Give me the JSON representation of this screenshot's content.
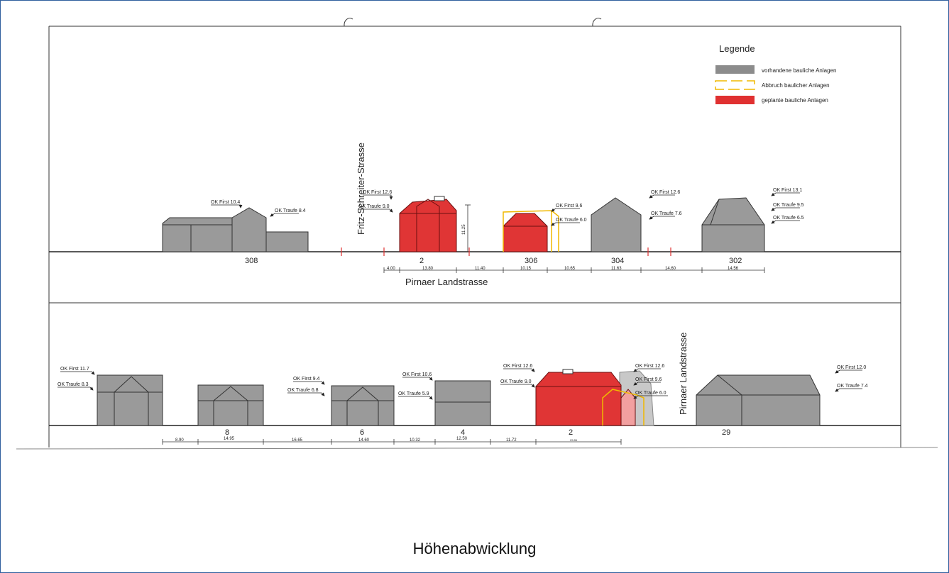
{
  "caption": "Höhenabwicklung",
  "legend": {
    "title": "Legende",
    "items": [
      {
        "label": "vorhandene bauliche Anlagen",
        "color": "#8c8c8c"
      },
      {
        "label": "Abbruch baulicher Anlagen",
        "color": "#f0b800"
      },
      {
        "label": "geplante bauliche Anlagen",
        "color": "#e03030"
      }
    ]
  },
  "colors": {
    "existing": "#9a9a9a",
    "demolition": "#f0b800",
    "planned": "#e03535",
    "line": "#222222"
  },
  "top_section": {
    "street_name": "Pirnaer Landstrasse",
    "cross_street": "Fritz-Schreiter-Strasse",
    "house_numbers": [
      "308",
      "2",
      "306",
      "304",
      "302"
    ],
    "height_dimension": "11.25",
    "dimensions": [
      "4.00",
      "13.80",
      "11.40",
      "10.15",
      "10.65",
      "11.63",
      "14.60",
      "14.56"
    ],
    "height_labels": [
      "OK First 10.4",
      "OK Traufe 8.4",
      "OK First 12.6",
      "OK Traufe 9.0",
      "OK First 9.6",
      "OK Traufe 6.0",
      "OK First 12.6",
      "OK Traufe 7.6",
      "OK First 13.1",
      "OK Traufe 9.5",
      "OK Traufe 6.5"
    ]
  },
  "bottom_section": {
    "cross_street": "Pirnaer Landstrasse",
    "house_numbers": [
      "8",
      "6",
      "4",
      "2",
      "29"
    ],
    "dimensions": [
      "8.90",
      "14.95",
      "16.65",
      "14.60",
      "10.32",
      "12.50",
      "11.72",
      "29.86"
    ],
    "height_labels": [
      "OK First 11.7",
      "OK Traufe 8.3",
      "OK First 9.4",
      "OK Traufe 6.8",
      "OK First 10.6",
      "OK Traufe 5.9",
      "OK First 12.6",
      "OK Traufe 9.0",
      "OK First 12.6",
      "OK First 9.6",
      "OK Traufe 6.0",
      "OK First 12.0",
      "OK Traufe 7.4"
    ]
  }
}
